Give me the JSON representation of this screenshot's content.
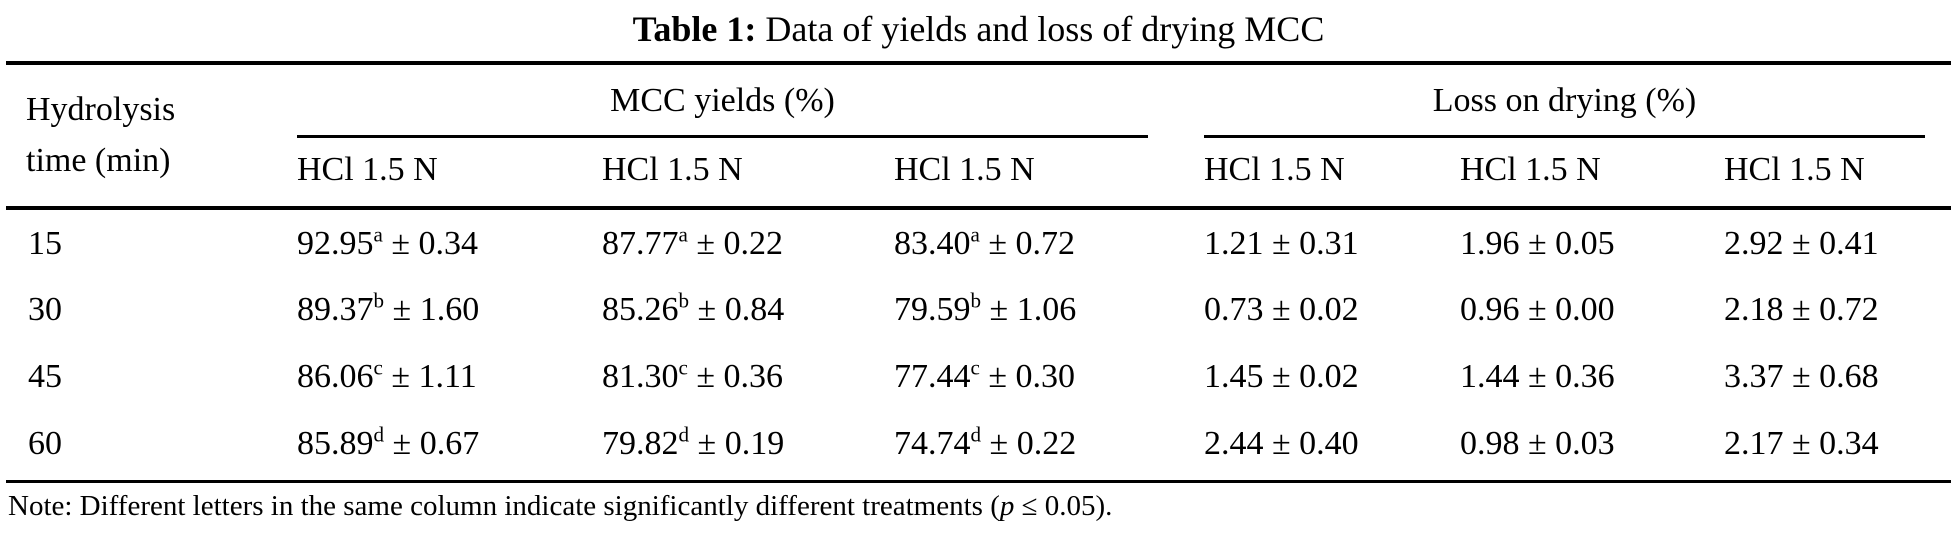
{
  "caption": {
    "label": "Table 1:",
    "text": " Data of yields and loss of drying MCC"
  },
  "header": {
    "col1_line1": "Hydrolysis",
    "col1_line2": "time (min)",
    "groups": [
      {
        "label": "MCC yields (%)",
        "subcols": [
          "HCl 1.5 N",
          "HCl 1.5 N",
          "HCl 1.5 N"
        ]
      },
      {
        "label": "Loss on drying (%)",
        "subcols": [
          "HCl 1.5 N",
          "HCl 1.5 N",
          "HCl 1.5 N"
        ]
      }
    ]
  },
  "table": {
    "pm": "±",
    "rows": [
      {
        "time": "15",
        "cells": [
          {
            "v": "92.95",
            "sup": "a",
            "e": "0.34"
          },
          {
            "v": "87.77",
            "sup": "a",
            "e": "0.22"
          },
          {
            "v": "83.40",
            "sup": "a",
            "e": "0.72"
          },
          {
            "v": "1.21",
            "sup": "",
            "e": "0.31"
          },
          {
            "v": "1.96",
            "sup": "",
            "e": "0.05"
          },
          {
            "v": "2.92",
            "sup": "",
            "e": "0.41"
          }
        ]
      },
      {
        "time": "30",
        "cells": [
          {
            "v": "89.37",
            "sup": "b",
            "e": "1.60"
          },
          {
            "v": "85.26",
            "sup": "b",
            "e": "0.84"
          },
          {
            "v": "79.59",
            "sup": "b",
            "e": "1.06"
          },
          {
            "v": "0.73",
            "sup": "",
            "e": "0.02"
          },
          {
            "v": "0.96",
            "sup": "",
            "e": "0.00"
          },
          {
            "v": "2.18",
            "sup": "",
            "e": "0.72"
          }
        ]
      },
      {
        "time": "45",
        "cells": [
          {
            "v": "86.06",
            "sup": "c",
            "e": "1.11"
          },
          {
            "v": "81.30",
            "sup": "c",
            "e": "0.36"
          },
          {
            "v": "77.44",
            "sup": "c",
            "e": "0.30"
          },
          {
            "v": "1.45",
            "sup": "",
            "e": "0.02"
          },
          {
            "v": "1.44",
            "sup": "",
            "e": "0.36"
          },
          {
            "v": "3.37",
            "sup": "",
            "e": "0.68"
          }
        ]
      },
      {
        "time": "60",
        "cells": [
          {
            "v": "85.89",
            "sup": "d",
            "e": "0.67"
          },
          {
            "v": "79.82",
            "sup": "d",
            "e": "0.19"
          },
          {
            "v": "74.74",
            "sup": "d",
            "e": "0.22"
          },
          {
            "v": "2.44",
            "sup": "",
            "e": "0.40"
          },
          {
            "v": "0.98",
            "sup": "",
            "e": "0.03"
          },
          {
            "v": "2.17",
            "sup": "",
            "e": "0.34"
          }
        ]
      }
    ]
  },
  "note": {
    "prefix": "Note: Different letters in the same column indicate significantly different treatments (",
    "p_italic": "p",
    "suffix": " ≤ 0.05)."
  }
}
